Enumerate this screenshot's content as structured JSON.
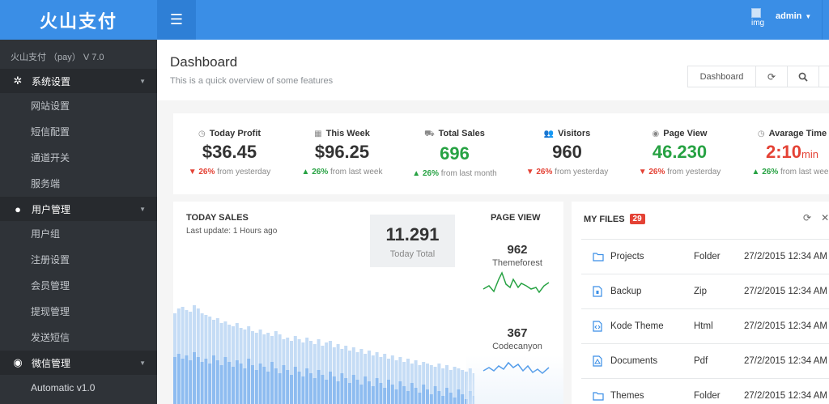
{
  "brand": {
    "logo_text": "火山支付",
    "version": "火山支付 （pay） V 7.0"
  },
  "sidebar": {
    "groups": [
      {
        "label": "系统设置",
        "icon": "gear-icon",
        "items": [
          "网站设置",
          "短信配置",
          "通道开关",
          "服务端"
        ]
      },
      {
        "label": "用户管理",
        "icon": "user-icon",
        "items": [
          "用户组",
          "注册设置",
          "会员管理",
          "提现管理",
          "发送短信"
        ]
      },
      {
        "label": "微信管理",
        "icon": "wechat-icon",
        "items": [
          "Automatic v1.0"
        ]
      }
    ]
  },
  "topbar": {
    "avatar_alt": "img",
    "username": "admin"
  },
  "header": {
    "title": "Dashboard",
    "subtitle": "This is a quick overview of some features",
    "buttons": {
      "dashboard": "Dashboard"
    }
  },
  "stats": [
    {
      "label": "Today Profit",
      "icon": "clock-icon",
      "value": "$36.45",
      "unit": "",
      "color": "#333333",
      "trend": "down",
      "change": "26%",
      "suffix": "from yesterday"
    },
    {
      "label": "This Week",
      "icon": "calendar-icon",
      "value": "$96.25",
      "unit": "",
      "color": "#333333",
      "trend": "up",
      "change": "26%",
      "suffix": "from last week"
    },
    {
      "label": "Total Sales",
      "icon": "cart-icon",
      "value": "696",
      "unit": "",
      "color": "#27a243",
      "trend": "up",
      "change": "26%",
      "suffix": "from last month"
    },
    {
      "label": "Visitors",
      "icon": "users-icon",
      "value": "960",
      "unit": "",
      "color": "#333333",
      "trend": "down",
      "change": "26%",
      "suffix": "from yesterday"
    },
    {
      "label": "Page View",
      "icon": "eye-icon",
      "value": "46.230",
      "unit": "",
      "color": "#27a243",
      "trend": "down",
      "change": "26%",
      "suffix": "from yesterday"
    },
    {
      "label": "Avarage Time",
      "icon": "clock-icon",
      "value": "2:10",
      "unit": "min",
      "color": "#e44235",
      "trend": "up",
      "change": "26%",
      "suffix": "from last week"
    }
  ],
  "sales": {
    "title": "TODAY SALES",
    "last_update": "Last update: 1 Hours ago",
    "total_value": "11.291",
    "total_label": "Today Total",
    "page_view_title": "PAGE VIEW",
    "page_views": [
      {
        "value": "962",
        "label": "Themeforest",
        "color": "#27a243"
      },
      {
        "value": "367",
        "label": "Codecanyon",
        "color": "#3a8ee6"
      }
    ]
  },
  "files": {
    "title": "MY FILES",
    "count": "29",
    "rows": [
      {
        "name": "Projects",
        "type": "Folder",
        "date": "27/2/2015 12:34 AM",
        "icon": "folder-icon"
      },
      {
        "name": "Backup",
        "type": "Zip",
        "date": "27/2/2015 12:34 AM",
        "icon": "zip-file-icon"
      },
      {
        "name": "Kode Theme",
        "type": "Html",
        "date": "27/2/2015 12:34 AM",
        "icon": "code-file-icon"
      },
      {
        "name": "Documents",
        "type": "Pdf",
        "date": "27/2/2015 12:34 AM",
        "icon": "pdf-file-icon"
      },
      {
        "name": "Themes",
        "type": "Folder",
        "date": "27/2/2015 12:34 AM",
        "icon": "folder-icon"
      }
    ]
  },
  "colors": {
    "primary": "#3a8ee6",
    "sidebar": "#2f3338",
    "up": "#27a243",
    "down": "#e44235"
  }
}
